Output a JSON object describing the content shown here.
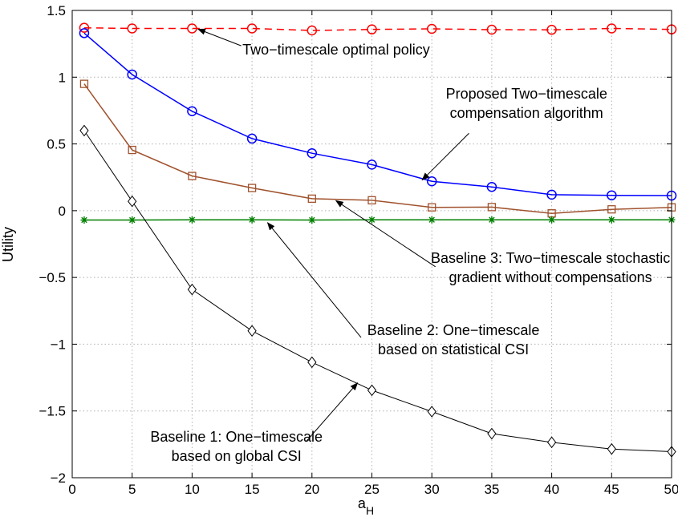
{
  "chart_data": {
    "type": "line",
    "xlabel": "a",
    "xlabel_sub": "H",
    "ylabel": "Utility",
    "xlim": [
      0,
      50
    ],
    "ylim": [
      -2,
      1.5
    ],
    "xticks": [
      0,
      5,
      10,
      15,
      20,
      25,
      30,
      35,
      40,
      45,
      50
    ],
    "yticks": [
      -2,
      -1.5,
      -1,
      -0.5,
      0,
      0.5,
      1,
      1.5
    ],
    "ytick_labels": [
      "−2",
      "−1.5",
      "−1",
      "−0.5",
      "0",
      "0.5",
      "1",
      "1.5"
    ],
    "grid": true,
    "x": [
      1,
      5,
      10,
      15,
      20,
      25,
      30,
      35,
      40,
      45,
      50
    ],
    "series": [
      {
        "key": "optimal",
        "values": [
          1.37,
          1.365,
          1.365,
          1.365,
          1.35,
          1.358,
          1.362,
          1.356,
          1.355,
          1.365,
          1.358
        ],
        "color": "#ff0000",
        "marker": "circle",
        "dash": "dashed"
      },
      {
        "key": "proposed",
        "values": [
          1.33,
          1.02,
          0.745,
          0.54,
          0.43,
          0.345,
          0.22,
          0.178,
          0.12,
          0.115,
          0.113
        ],
        "color": "#0000ff",
        "marker": "circle",
        "dash": "solid"
      },
      {
        "key": "baseline3",
        "values": [
          0.95,
          0.455,
          0.26,
          0.17,
          0.09,
          0.078,
          0.025,
          0.027,
          -0.02,
          0.01,
          0.025
        ],
        "color": "#a0522d",
        "marker": "square",
        "dash": "solid"
      },
      {
        "key": "baseline2",
        "values": [
          -0.07,
          -0.07,
          -0.068,
          -0.068,
          -0.07,
          -0.068,
          -0.068,
          -0.068,
          -0.068,
          -0.068,
          -0.068
        ],
        "color": "#008000",
        "marker": "star",
        "dash": "solid"
      },
      {
        "key": "baseline1",
        "values": [
          0.6,
          0.07,
          -0.59,
          -0.9,
          -1.135,
          -1.345,
          -1.505,
          -1.67,
          -1.735,
          -1.785,
          -1.805
        ],
        "color": "#000000",
        "marker": "diamond",
        "dash": "solid"
      }
    ],
    "annotations": [
      {
        "lines": [
          "Two−timescale optimal policy"
        ],
        "anchor": "start",
        "text_x": 14.2,
        "text_y": 1.17,
        "arrow_from": [
          14.1,
          1.235
        ],
        "arrow_to": [
          10.5,
          1.36
        ]
      },
      {
        "lines": [
          "Proposed Two−timescale",
          "compensation algorithm"
        ],
        "anchor": "middle",
        "text_x": 37.9,
        "text_y": 0.84,
        "arrow_from": [
          33.1,
          0.58
        ],
        "arrow_to": [
          29.2,
          0.23
        ]
      },
      {
        "lines": [
          "Baseline 3: Two−timescale stochastic",
          "gradient without compensations"
        ],
        "anchor": "middle",
        "text_x": 39.9,
        "text_y": -0.39,
        "arrow_from": [
          30.3,
          -0.42
        ],
        "arrow_to": [
          22.0,
          0.075
        ]
      },
      {
        "lines": [
          "Baseline 2: One−timescale",
          "based on statistical CSI"
        ],
        "anchor": "middle",
        "text_x": 31.8,
        "text_y": -0.93,
        "arrow_from": [
          24.1,
          -0.95
        ],
        "arrow_to": [
          16.3,
          -0.09
        ]
      },
      {
        "lines": [
          "Baseline 1: One−timescale",
          "based on global CSI"
        ],
        "anchor": "middle",
        "text_x": 13.7,
        "text_y": -1.73,
        "arrow_from": [
          19.5,
          -1.73
        ],
        "arrow_to": [
          23.8,
          -1.29
        ]
      }
    ],
    "colors": {
      "grid": "#b0b0b0",
      "axis": "#000000",
      "background": "#ffffff"
    }
  }
}
